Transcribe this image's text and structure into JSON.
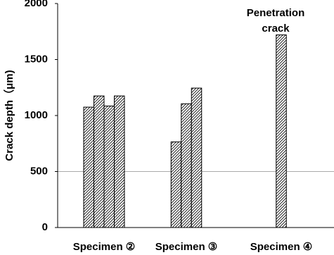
{
  "chart_data": {
    "type": "bar",
    "y_label": "Crack depth（μm)",
    "categories": [
      "Specimen ②",
      "Specimen ③",
      "Specimen ④"
    ],
    "series": [
      {
        "color": "#000000",
        "values": [
          1075,
          765,
          1720
        ]
      },
      {
        "color": "#000000",
        "values": [
          1175,
          1105,
          null
        ]
      },
      {
        "color": "#000000",
        "values": [
          1085,
          1245,
          null
        ]
      },
      {
        "color": "#000000",
        "values": [
          1175,
          null,
          null
        ]
      }
    ],
    "annotation": [
      "Penetration",
      "crack"
    ],
    "ylim": [
      0,
      2000
    ],
    "yticks": [
      0,
      500,
      1000,
      1500,
      2000
    ],
    "reference_line": 500
  }
}
